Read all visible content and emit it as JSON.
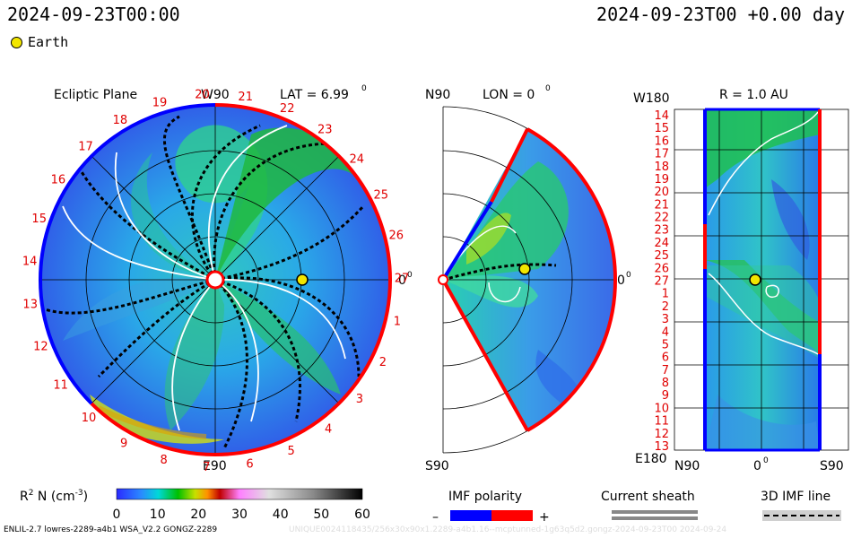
{
  "header": {
    "left_time": "2024-09-23T00:00",
    "right_time": "2024-09-23T00 +0.00 day",
    "earth_legend": "Earth"
  },
  "panels": {
    "ecliptic": {
      "title": "Ecliptic Plane",
      "top_label": "W90",
      "lat_label": "LAT = 6.99",
      "bottom_label": "E90",
      "right_label": "0",
      "carrington_ticks": [
        "20",
        "21",
        "22",
        "23",
        "24",
        "25",
        "26",
        "27",
        "1",
        "2",
        "3",
        "4",
        "5",
        "6",
        "7",
        "8",
        "9",
        "10",
        "11",
        "12",
        "13",
        "14",
        "15",
        "16",
        "17",
        "18",
        "19"
      ]
    },
    "meridional": {
      "top_label": "N90",
      "lon_label": "LON = 0",
      "bottom_label": "S90",
      "right_label": "0"
    },
    "synoptic": {
      "top_label": "W180",
      "r_label": "R = 1.0 AU",
      "bottom_label": "E180",
      "x_labels": [
        "N90",
        "0",
        "S90"
      ],
      "y_ticks": [
        "14",
        "15",
        "16",
        "17",
        "18",
        "19",
        "20",
        "21",
        "22",
        "23",
        "24",
        "25",
        "26",
        "27",
        "1",
        "2",
        "3",
        "4",
        "5",
        "6",
        "7",
        "8",
        "9",
        "10",
        "11",
        "12",
        "13"
      ]
    }
  },
  "colorbar": {
    "label": "R",
    "label_sup": "2",
    "label_rest": " N (cm",
    "label_exp": "-3",
    "label_close": ")",
    "ticks": [
      "0",
      "10",
      "20",
      "30",
      "40",
      "50",
      "60"
    ]
  },
  "imf": {
    "title": "IMF polarity",
    "minus": "–",
    "plus": "+",
    "neg_color": "#0000ff",
    "pos_color": "#ff0000"
  },
  "sheath": {
    "title": "Current sheath"
  },
  "imf3d": {
    "title": "3D IMF line"
  },
  "footer": {
    "left": "ENLIL-2.7 lowres-2289-a4b1 WSA_V2.2 GONGZ-2289",
    "right": "UNIQUE0024118435/256x30x90x1.2289-a4b1.16--mcptunned-1g63q5d2.gongz-2024-09-23T00   2024-09-24"
  },
  "chart_data": {
    "type": "heatmap",
    "quantity": "R^2 N (cm^-3)",
    "color_scale_range": [
      0,
      60
    ],
    "earth_position": {
      "ecliptic_lon_deg": 0,
      "r_au": 1.0
    },
    "ecliptic_lat_deg": 6.99,
    "meridional_lon_deg": 0,
    "synoptic_r_au": 1.0
  }
}
